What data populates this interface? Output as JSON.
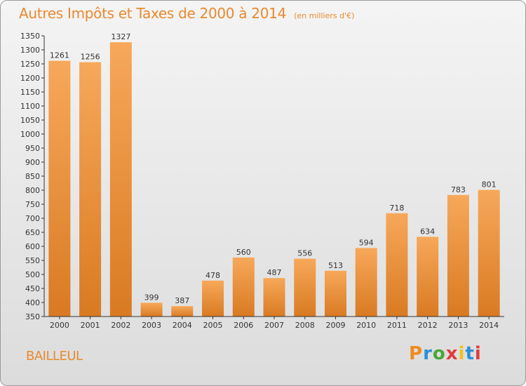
{
  "chart_data": {
    "type": "bar",
    "title": "Autres Impôts et Taxes de 2000 à 2014",
    "subtitle": "(en milliers d'€)",
    "categories": [
      "2000",
      "2001",
      "2002",
      "2003",
      "2004",
      "2005",
      "2006",
      "2007",
      "2008",
      "2009",
      "2010",
      "2011",
      "2012",
      "2013",
      "2014"
    ],
    "values": [
      1261,
      1256,
      1327,
      399,
      387,
      478,
      560,
      487,
      556,
      513,
      594,
      718,
      634,
      783,
      801
    ],
    "ylim": [
      350,
      1350
    ],
    "yticks": [
      350,
      400,
      450,
      500,
      550,
      600,
      650,
      700,
      750,
      800,
      850,
      900,
      950,
      1000,
      1050,
      1100,
      1150,
      1200,
      1250,
      1300,
      1350
    ],
    "grid": false,
    "bar_color_top": "#f7a85a",
    "bar_color_bottom": "#d97a22"
  },
  "footer": {
    "commune": "BAILLEUL",
    "logo_letters": [
      "P",
      "r",
      "o",
      "x",
      "i",
      "t",
      "i"
    ],
    "logo_colors": [
      "#f08a1e",
      "#2a8fd6",
      "#4aa63a",
      "#e23b3b",
      "#f0c020",
      "#2a8fd6",
      "#e23b3b"
    ]
  }
}
